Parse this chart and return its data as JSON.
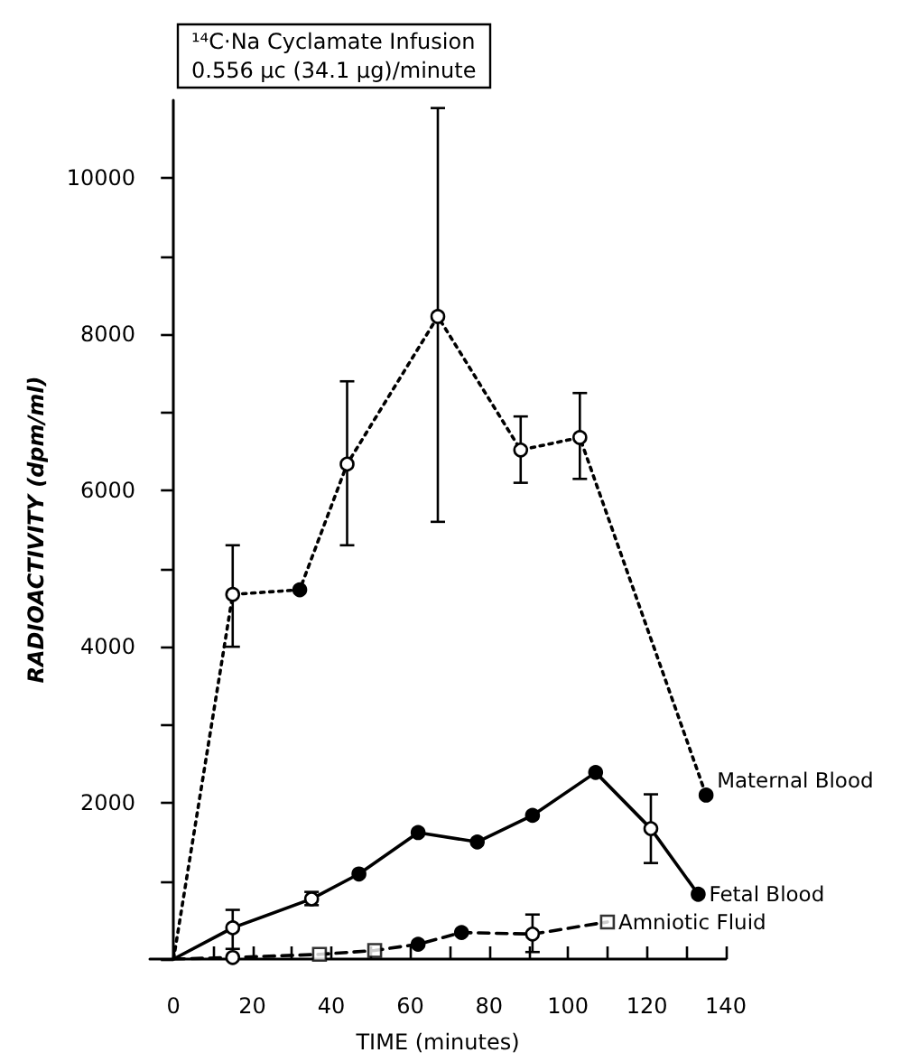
{
  "chart_data": {
    "type": "line",
    "title": "¹⁴C·Na Cyclamate Infusion",
    "subtitle": "0.556 μc (34.1 μg)/minute",
    "xlabel": "TIME (minutes)",
    "ylabel": "RADIOACTIVITY (dpm/ml)",
    "xlim": [
      -6,
      140
    ],
    "xticks": [
      0,
      {
        "value": 10,
        "label": null
      },
      20,
      {
        "value": 30,
        "label": null
      },
      40,
      {
        "value": 50,
        "label": null
      },
      60,
      {
        "value": 70,
        "label": null
      },
      80,
      {
        "value": 90,
        "label": null
      },
      100,
      {
        "value": 110,
        "label": null
      },
      120,
      {
        "value": 130,
        "label": null
      },
      140
    ],
    "ylim": [
      0,
      11000
    ],
    "yticks": [
      {
        "value": 0,
        "label": null
      },
      {
        "value": 1000,
        "label": null
      },
      2000,
      {
        "value": 3000,
        "label": null
      },
      4000,
      {
        "value": 5000,
        "label": null
      },
      6000,
      {
        "value": 7000,
        "label": null
      },
      8000,
      {
        "value": 9000,
        "label": null
      },
      10000
    ],
    "grid": false,
    "legend": false,
    "marker": "circle",
    "series": [
      {
        "name": "Maternal Blood",
        "color": "#000000",
        "line_style": "dotted",
        "x": [
          0,
          15,
          32,
          44,
          67,
          88,
          103,
          135
        ],
        "values": [
          0,
          4670,
          4730,
          6340,
          8230,
          6520,
          6680,
          2100
        ],
        "errors": [
          null,
          [
            4000,
            5300
          ],
          null,
          [
            5300,
            7400
          ],
          [
            5600,
            10900
          ],
          [
            6100,
            6950
          ],
          [
            6150,
            7250
          ],
          null
        ],
        "colors": [
          null,
          "#ffffff",
          "#000000",
          "#ffffff",
          "#ffffff",
          "#ffffff",
          "#ffffff",
          "#000000"
        ]
      },
      {
        "name": "Fetal Blood",
        "color": "#000000",
        "line_style": "solid",
        "x": [
          0,
          15,
          35,
          47,
          62,
          77,
          91,
          107,
          121,
          133
        ],
        "values": [
          0,
          400,
          770,
          1090,
          1620,
          1500,
          1840,
          2390,
          1670,
          830
        ],
        "errors": [
          null,
          [
            130,
            630
          ],
          [
            690,
            860
          ],
          null,
          null,
          null,
          null,
          null,
          [
            1230,
            2110
          ],
          null
        ],
        "colors": [
          null,
          "#ffffff",
          "#ffffff",
          "#000000",
          "#000000",
          "#000000",
          "#000000",
          "#000000",
          "#ffffff",
          "#000000"
        ]
      },
      {
        "name": "Amniotic Fluid",
        "color": "#000000",
        "line_style": "dashed",
        "x": [
          0,
          15,
          37,
          51,
          62,
          73,
          91,
          110
        ],
        "values": [
          0,
          20,
          60,
          110,
          190,
          340,
          320,
          475
        ],
        "errors": [
          null,
          null,
          null,
          null,
          null,
          null,
          [
            90,
            570
          ],
          null
        ],
        "colors": [
          null,
          "#ffffff",
          null,
          null,
          "#000000",
          "#000000",
          "#ffffff",
          null
        ]
      },
      {
        "type": "scatter",
        "marker": "square",
        "color": "#000000",
        "x": [
          37,
          51,
          110
        ],
        "values": [
          60,
          110,
          475
        ],
        "colors": [
          "#ffffff",
          "#ffffff",
          "#ffffff"
        ]
      }
    ]
  }
}
